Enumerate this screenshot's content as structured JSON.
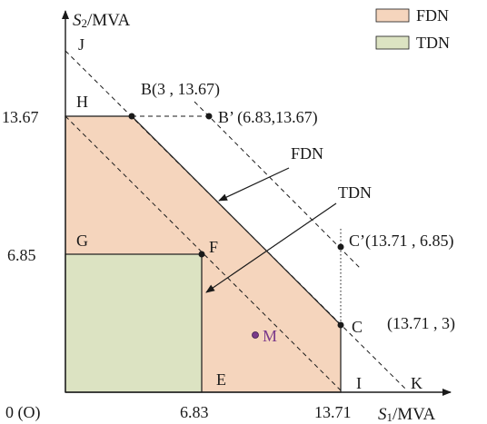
{
  "legend": {
    "items": [
      {
        "label": "FDN",
        "color": "#f5d5bd"
      },
      {
        "label": "TDN",
        "color": "#dce3c2"
      }
    ]
  },
  "axes": {
    "y_label_italic": "S",
    "y_label_sub": "2",
    "y_label_unit": "/MVA",
    "x_label_italic": "S",
    "x_label_sub": "1",
    "x_label_unit": "/MVA",
    "y_ticks": [
      "13.67",
      "6.85"
    ],
    "x_ticks": [
      "6.83",
      "13.71"
    ],
    "origin": "0 (O)"
  },
  "labels": {
    "J": "J",
    "H": "H",
    "G": "G",
    "F": "F",
    "E": "E",
    "I": "I",
    "K": "K",
    "C": "C",
    "M": "M",
    "B": "B(3 , 13.67)",
    "B_prime": "B’ (6.83,13.67)",
    "C_prime": "C’(13.71 , 6.85)",
    "C_coord": "(13.71 , 3)",
    "fdn_arrow": "FDN",
    "tdn_arrow": "TDN"
  },
  "colors": {
    "fdn_fill": "#f5d5bd",
    "tdn_fill": "#dce3c2",
    "point_m": "#7a3a8a",
    "line": "#1a1a1a"
  }
}
